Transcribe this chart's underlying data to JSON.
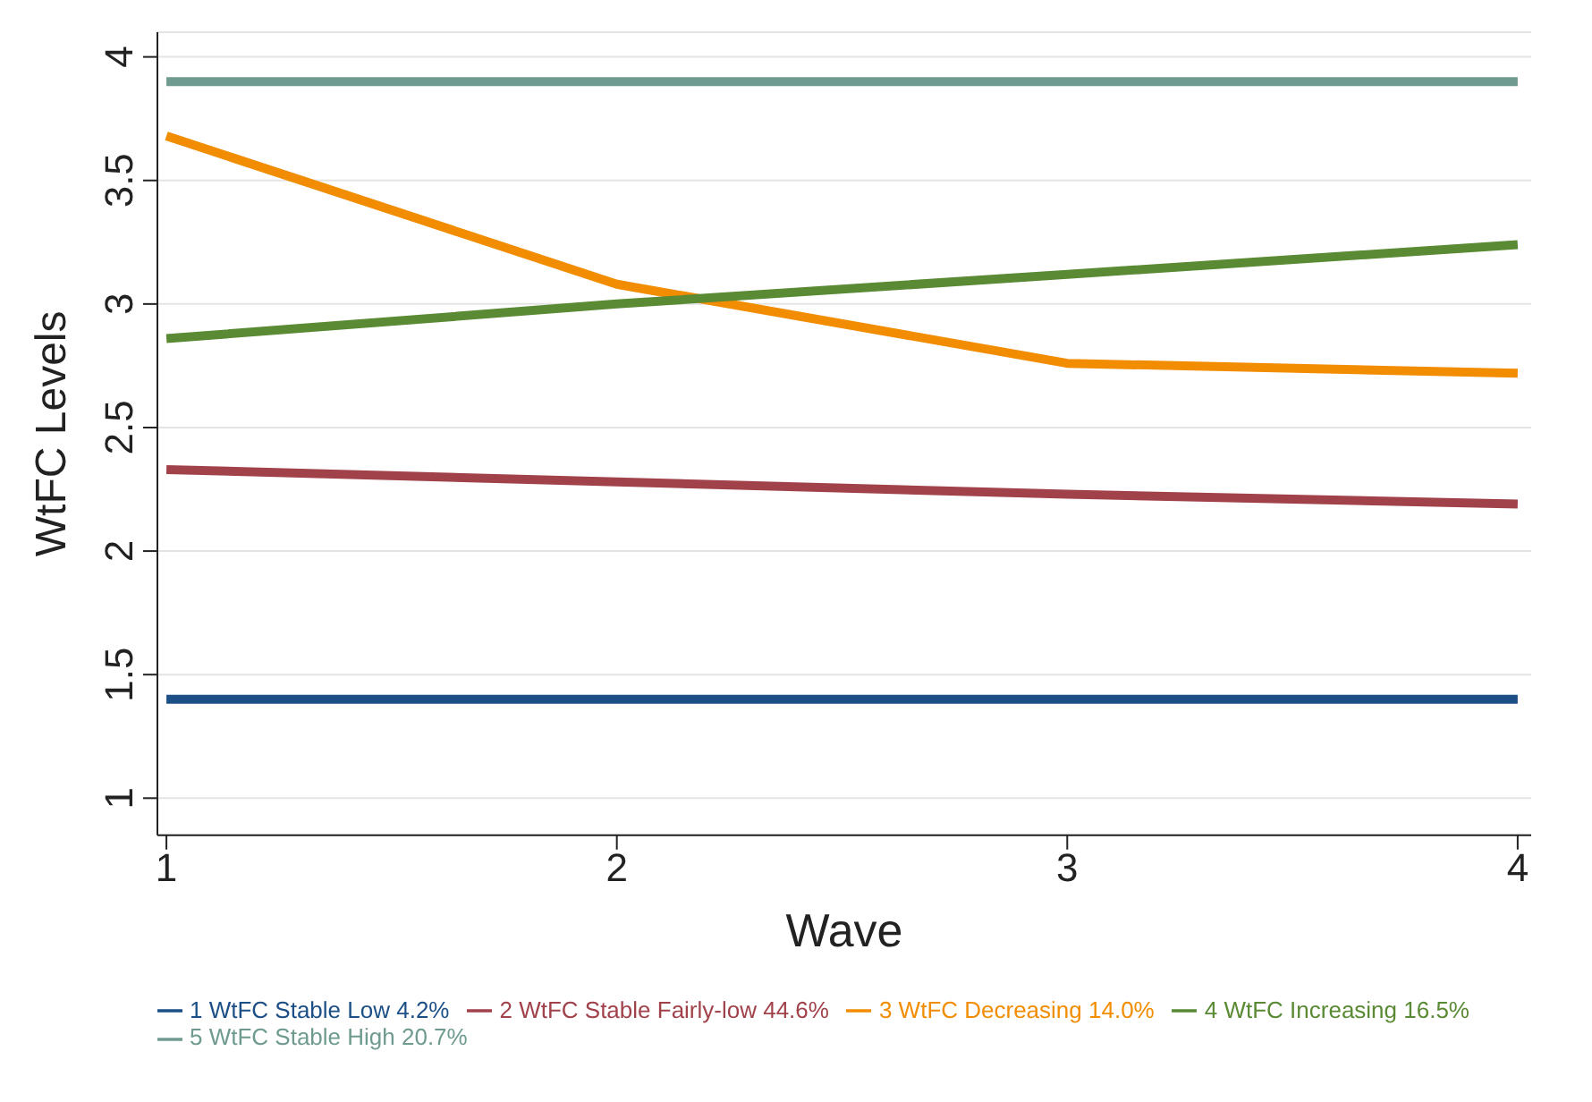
{
  "chart_data": {
    "type": "line",
    "xlabel": "Wave",
    "ylabel": "WtFC Levels",
    "x": [
      1,
      2,
      3,
      4
    ],
    "series": [
      {
        "name": "1 WtFC Stable Low 4.2%",
        "color": "#1b4f86",
        "values": [
          1.4,
          1.4,
          1.4,
          1.4
        ]
      },
      {
        "name": "2 WtFC Stable Fairly-low 44.6%",
        "color": "#a1424b",
        "values": [
          2.33,
          2.28,
          2.23,
          2.19
        ]
      },
      {
        "name": "3 WtFC Decreasing 14.0%",
        "color": "#f28c00",
        "values": [
          3.68,
          3.08,
          2.76,
          2.72
        ]
      },
      {
        "name": "4 WtFC Increasing 16.5%",
        "color": "#5a8a34",
        "values": [
          2.86,
          3.0,
          3.12,
          3.24
        ]
      },
      {
        "name": "5 WtFC Stable High 20.7%",
        "color": "#6f9a8f",
        "values": [
          3.9,
          3.9,
          3.9,
          3.9
        ]
      }
    ],
    "xlim": [
      0.98,
      4.03
    ],
    "xticks": [
      1,
      2,
      3,
      4
    ],
    "ylim": [
      0.85,
      4.1
    ],
    "yticks": [
      1,
      1.5,
      2,
      2.5,
      3,
      3.5,
      4
    ],
    "grid": "y",
    "legend": "bottom",
    "marker": "none",
    "line_style": "solid"
  }
}
